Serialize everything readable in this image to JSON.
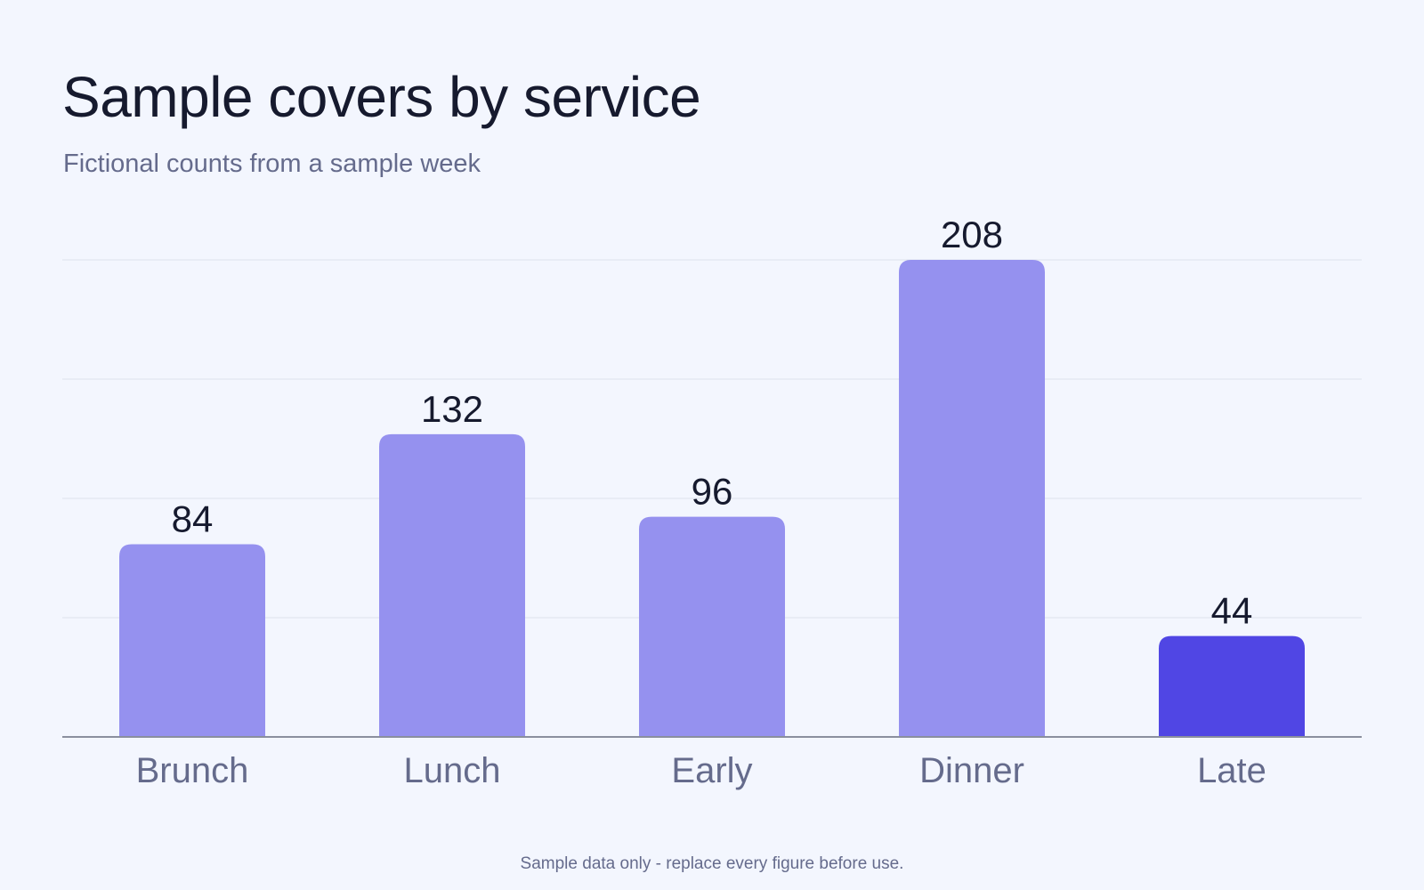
{
  "title": "Sample covers by service",
  "subtitle": "Fictional counts from a sample week",
  "footnote": "Sample data only - replace every figure before use.",
  "colors": {
    "background": "#f3f6fe",
    "bar": "#9591ef",
    "bar_highlight": "#5046e4",
    "gridline": "#dde1ec",
    "axis": "#8a8f9e",
    "value_label": "#161a2e",
    "category_label": "#656b8c"
  },
  "chart_data": {
    "type": "bar",
    "categories": [
      "Brunch",
      "Lunch",
      "Early",
      "Dinner",
      "Late"
    ],
    "values": [
      84,
      132,
      96,
      208,
      44
    ],
    "highlight_category": "Late",
    "title": "Sample covers by service",
    "subtitle": "Fictional counts from a sample week",
    "xlabel": "",
    "ylabel": "",
    "ylim": [
      0,
      208
    ],
    "grid": true,
    "data_labels": true,
    "legend": "none"
  }
}
